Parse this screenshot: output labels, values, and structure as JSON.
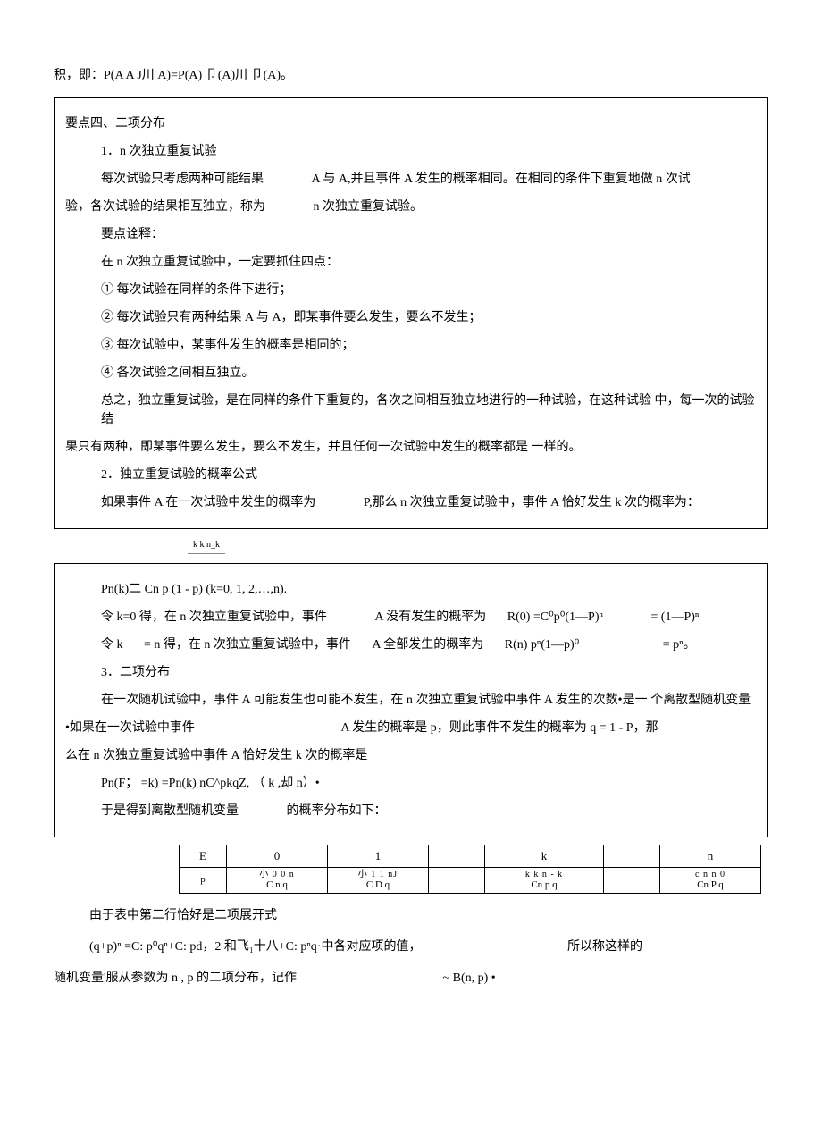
{
  "top_line": "积，即：P(A A J川 A)=P(A) 卩(A)川 卩(A)。",
  "box1": {
    "title": "要点四、二项分布",
    "h1": "1．n 次独立重复试验",
    "p1a": "每次试验只考虑两种可能结果",
    "p1b": "A 与 A,并且事件 A 发生的概率相同。在相同的条件下重复地做 n 次试",
    "p2a": "验，各次试验的结果相互独立，称为",
    "p2b": "n 次独立重复试验。",
    "p3": "要点诠释：",
    "p4": "在 n 次独立重复试验中，一定要抓住四点：",
    "p5": "① 每次试验在同样的条件下进行；",
    "p6": "② 每次试验只有两种结果 A 与 A，即某事件要么发生，要么不发生；",
    "p7": "③ 每次试验中，某事件发生的概率是相同的；",
    "p8": "④ 各次试验之间相互独立。",
    "p9": "总之，独立重复试验，是在同样的条件下重复的，各次之间相互独立地进行的一种试验，在这种试验 中，每一次的试验结",
    "p10": "果只有两种，即某事件要么发生，要么不发生，并且任何一次试验中发生的概率都是 一样的。",
    "h2": "2．独立重复试验的概率公式",
    "p11a": "如果事件 A 在一次试验中发生的概率为",
    "p11b": "P,那么 n 次独立重复试验中，事件 A 恰好发生 k 次的概率为："
  },
  "mid_small": "k k                    n_k",
  "box2": {
    "f1": "Pn(k)二 Cn p (1 - p)   (k=0, 1, 2,…,n).",
    "f2a": "令 k=0 得，在 n 次独立重复试验中，事件",
    "f2b": "A 没有发生的概率为",
    "f2c": "R(0) =C⁰p⁰(1—P)ⁿ",
    "f2d": "= (1—P)ⁿ",
    "f3a": "令 k",
    "f3b": "= n 得，在 n 次独立重复试验中，事件",
    "f3c": "A 全部发生的概率为",
    "f3d": "R(n) pⁿ(1—p)⁰",
    "f3e": "= pⁿ。",
    "h3": "3．二项分布",
    "p12": "在一次随机试验中，事件 A 可能发生也可能不发生，在 n 次独立重复试验中事件 A 发生的次数•是一 个离散型随机变量",
    "p13a": "•如果在一次试验中事件",
    "p13b": "A 发生的概率是 p，则此事件不发生的概率为 q = 1 - P，那",
    "p14": "么在 n 次独立重复试验中事件 A 恰好发生 k 次的概率是",
    "f4": "Pn(F；   =k) =Pn(k) nC^pkqZ,   （ k ,却               n）•",
    "p15a": "于是得到离散型随机变量",
    "p15b": "的概率分布如下："
  },
  "table": {
    "r1": [
      "E",
      "0",
      "1",
      "",
      "k",
      "",
      "n"
    ],
    "r2_top": [
      "",
      "小 0  0 n",
      "小 1  1  nJ",
      "",
      "k k n - k",
      "",
      "c n n 0"
    ],
    "r2_bot": [
      "p",
      "C  n  q",
      "C  D  q",
      "",
      "Cn p q",
      "",
      "Cn P q"
    ],
    "widths": [
      40,
      100,
      100,
      50,
      120,
      50,
      100
    ]
  },
  "tail": {
    "t1": "由于表中第二行恰好是二项展开式",
    "t2a": "(q+p)ⁿ =C: p⁰qⁿ+C: pd，2 和飞₁十八+C: pⁿq·中各对应项的值，",
    "t2b": "所以称这样的",
    "t3a": "随机变量'服从参数为 n , p 的二项分布，记作",
    "t3b": "~ B(n, p) •"
  }
}
